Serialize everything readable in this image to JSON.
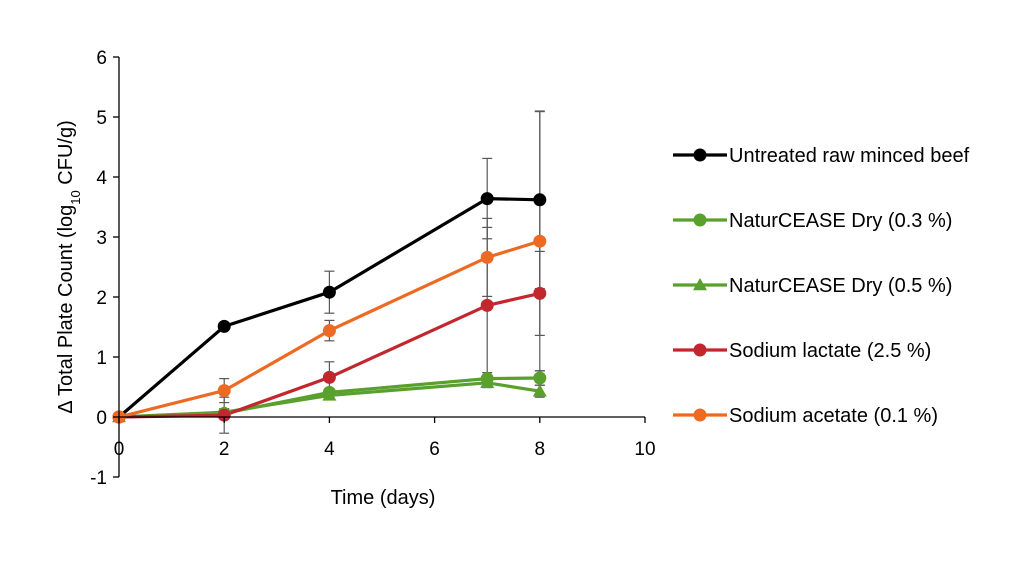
{
  "chart_data": {
    "type": "line",
    "title": "",
    "xlabel": "Time (days)",
    "ylabel_prefix": "Δ Total Plate Count (log",
    "ylabel_sub": "10",
    "ylabel_suffix": " CFU/g)",
    "xlim": [
      0,
      10
    ],
    "ylim": [
      -1,
      6
    ],
    "xticks": [
      "0",
      "2",
      "4",
      "6",
      "8",
      "10"
    ],
    "yticks": [
      "-1",
      "0",
      "1",
      "2",
      "3",
      "4",
      "5",
      "6"
    ],
    "grid": false,
    "legend_position": "right",
    "series": [
      {
        "name": "Untreated raw minced beef",
        "color": "#000000",
        "marker": "circle",
        "x": [
          0,
          2,
          4,
          7,
          8
        ],
        "y": [
          0,
          1.51,
          2.08,
          3.64,
          3.62
        ],
        "err_high": [
          0,
          0,
          0.35,
          0.67,
          1.48
        ],
        "err_low": [
          0,
          0,
          0.35,
          0.67,
          1.48
        ]
      },
      {
        "name": "NaturCEASE Dry (0.3 %)",
        "color": "#5aa02c",
        "marker": "circle",
        "x": [
          0,
          2,
          4,
          7,
          8
        ],
        "y": [
          0,
          0.06,
          0.41,
          0.64,
          0.65
        ],
        "err_high": [
          0,
          0.06,
          0.06,
          0.1,
          0.12
        ],
        "err_low": [
          0,
          0.06,
          0.06,
          0.1,
          0.12
        ]
      },
      {
        "name": "NaturCEASE Dry (0.5 %)",
        "color": "#5aa02c",
        "marker": "triangle",
        "x": [
          0,
          2,
          4,
          7,
          8
        ],
        "y": [
          0,
          0.08,
          0.36,
          0.57,
          0.43
        ],
        "err_high": [
          0,
          0.06,
          0.06,
          0.08,
          0.1
        ],
        "err_low": [
          0,
          0.06,
          0.06,
          0.08,
          0.1
        ]
      },
      {
        "name": "Sodium lactate (2.5 %)",
        "color": "#c1272d",
        "marker": "circle",
        "x": [
          0,
          2,
          4,
          7,
          8
        ],
        "y": [
          0,
          0.03,
          0.66,
          1.86,
          2.06
        ],
        "err_high": [
          0,
          0.3,
          0.26,
          1.3,
          0.7
        ],
        "err_low": [
          0,
          0.3,
          0.26,
          1.3,
          0.7
        ]
      },
      {
        "name": "Sodium acetate (0.1 %)",
        "color": "#ed6a22",
        "marker": "circle",
        "x": [
          0,
          2,
          4,
          7,
          8
        ],
        "y": [
          0,
          0.44,
          1.44,
          2.66,
          2.93
        ],
        "err_high": [
          0,
          0.2,
          0.17,
          0.65,
          2.16
        ],
        "err_low": [
          0,
          0.2,
          0.17,
          0.65,
          2.16
        ]
      }
    ]
  }
}
